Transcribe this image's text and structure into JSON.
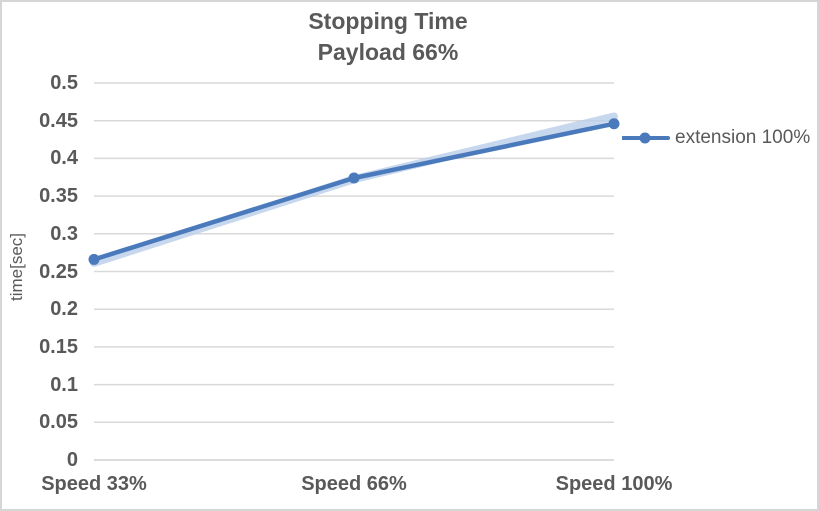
{
  "title": {
    "line1": "Stopping Time",
    "line2": "Payload 66%"
  },
  "axes": {
    "y_label": "time[sec]"
  },
  "legend": {
    "items": [
      {
        "label": "extension 100%"
      }
    ]
  },
  "colors": {
    "series_line": "#4a7abc",
    "series_glow": "#b9cde8",
    "gridline": "#d9d9d9",
    "axis_line": "#d0d0d0",
    "text": "#595959",
    "chart_border": "#d6d6d6"
  },
  "chart_data": {
    "type": "line",
    "title": "Stopping Time Payload 66%",
    "categories": [
      "Speed 33%",
      "Speed 66%",
      "Speed 100%"
    ],
    "series": [
      {
        "name": "extension 100%",
        "values": [
          0.266,
          0.374,
          0.446
        ]
      }
    ],
    "xlabel": "",
    "ylabel": "time[sec]",
    "ylim": [
      0,
      0.5
    ],
    "yticks": [
      "0",
      "0.05",
      "0.1",
      "0.15",
      "0.2",
      "0.25",
      "0.3",
      "0.35",
      "0.4",
      "0.45",
      "0.5"
    ],
    "grid": true,
    "legend_position": "right",
    "marker": "circle"
  }
}
